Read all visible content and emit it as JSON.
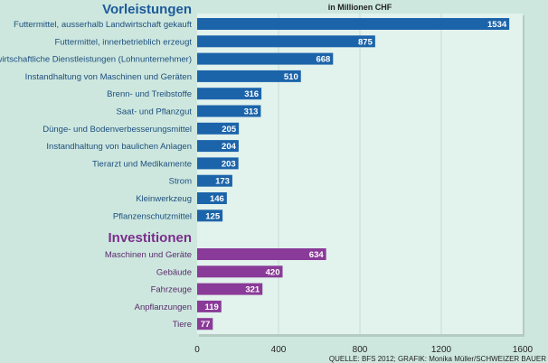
{
  "chart_data": {
    "type": "bar",
    "orientation": "horizontal",
    "unit_label": "in Millionen CHF",
    "xlim": [
      0,
      1600
    ],
    "xticks": [
      "0",
      "400",
      "800",
      "1200",
      "1600"
    ],
    "grid": true,
    "source": "QUELLE: BFS 2012; GRAFIK: Monika Müller/SCHWEIZER BAUER",
    "groups": [
      {
        "title": "Vorleistungen",
        "color": "#1c64aa",
        "categories": [
          "Futtermittel, ausserhalb Landwirtschaft gekauft",
          "Futtermittel, innerbetrieblich erzeugt",
          "Landwirtschaftliche Dienstleistungen (Lohnunternehmer)",
          "Instandhaltung von Maschinen und Geräten",
          "Brenn- und Treibstoffe",
          "Saat- und Pflanzgut",
          "Dünge- und Bodenverbesserungsmittel",
          "Instandhaltung von baulichen Anlagen",
          "Tierarzt und Medikamente",
          "Strom",
          "Kleinwerkzeug",
          "Pflanzenschutzmittel"
        ],
        "values": [
          1534,
          875,
          668,
          510,
          316,
          313,
          205,
          204,
          203,
          173,
          146,
          125
        ]
      },
      {
        "title": "Investitionen",
        "color": "#8a3a98",
        "categories": [
          "Maschinen und Geräte",
          "Gebäude",
          "Fahrzeuge",
          "Anpflanzungen",
          "Tiere"
        ],
        "values": [
          634,
          420,
          321,
          119,
          77
        ]
      }
    ]
  }
}
